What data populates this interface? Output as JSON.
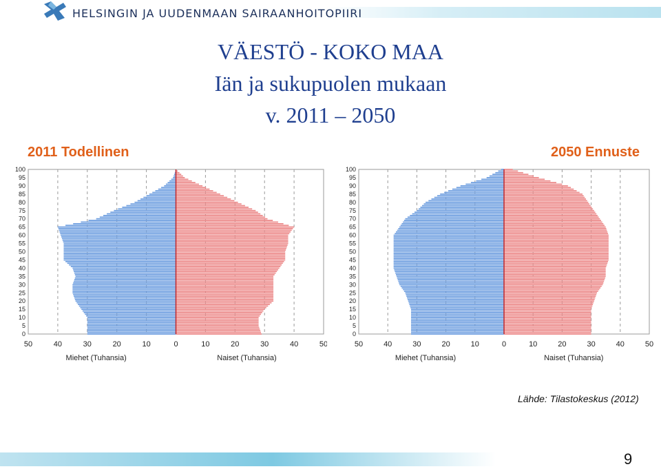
{
  "header": {
    "org_name": "HELSINGIN JA UUDENMAAN SAIRAANHOITOPIIRI",
    "logo_icon": "hus-cross-logo-icon"
  },
  "title": {
    "line1": "VÄESTÖ - KOKO MAA",
    "line2": "Iän ja sukupuolen mukaan",
    "line3": "v. 2011 – 2050"
  },
  "colors": {
    "male": "#6f9fe0",
    "female": "#ec8a8a",
    "axis_line": "#c0282d",
    "title": "#1f3f8f",
    "panel_label": "#e0601a"
  },
  "chart_data": [
    {
      "type": "bar",
      "orientation": "horizontal-population-pyramid",
      "panel_label": "2011 Todellinen",
      "age_ticks": [
        100,
        95,
        90,
        85,
        80,
        75,
        70,
        65,
        60,
        55,
        50,
        45,
        40,
        35,
        30,
        25,
        20,
        15,
        10,
        5,
        0
      ],
      "x_ticks": [
        50,
        40,
        30,
        20,
        10,
        0,
        10,
        20,
        30,
        40,
        50
      ],
      "xlabel_left": "Miehet (Tuhansia)",
      "xlabel_right": "Naiset (Tuhansia)",
      "xlim": [
        -50,
        50
      ],
      "ylim": [
        0,
        100
      ],
      "grid": true,
      "series": [
        {
          "name": "Miehet",
          "ages": [
            0,
            5,
            10,
            15,
            20,
            25,
            30,
            35,
            40,
            45,
            50,
            55,
            60,
            65,
            70,
            75,
            80,
            85,
            90,
            95,
            100
          ],
          "values": [
            30,
            30,
            30,
            32,
            34,
            35,
            35,
            34,
            35,
            38,
            38,
            38,
            39,
            40,
            27,
            21,
            14,
            9,
            4,
            1,
            0
          ]
        },
        {
          "name": "Naiset",
          "ages": [
            0,
            5,
            10,
            15,
            20,
            25,
            30,
            35,
            40,
            45,
            50,
            55,
            60,
            65,
            70,
            75,
            80,
            85,
            90,
            95,
            100
          ],
          "values": [
            29,
            28,
            28,
            30,
            33,
            33,
            33,
            33,
            35,
            37,
            37,
            38,
            38,
            40,
            31,
            27,
            21,
            15,
            9,
            3,
            0
          ]
        }
      ]
    },
    {
      "type": "bar",
      "orientation": "horizontal-population-pyramid",
      "panel_label": "2050 Ennuste",
      "age_ticks": [
        100,
        95,
        90,
        85,
        80,
        75,
        70,
        65,
        60,
        55,
        50,
        45,
        40,
        35,
        30,
        25,
        20,
        15,
        10,
        5,
        0
      ],
      "x_ticks": [
        50,
        40,
        30,
        20,
        10,
        0,
        10,
        20,
        30,
        40,
        50
      ],
      "xlabel_left": "Miehet (Tuhansia)",
      "xlabel_right": "Naiset (Tuhansia)",
      "xlim": [
        -50,
        50
      ],
      "ylim": [
        0,
        100
      ],
      "grid": true,
      "series": [
        {
          "name": "Miehet",
          "ages": [
            0,
            5,
            10,
            15,
            20,
            25,
            30,
            35,
            40,
            45,
            50,
            55,
            60,
            65,
            70,
            75,
            80,
            85,
            90,
            95,
            100
          ],
          "values": [
            32,
            32,
            32,
            32,
            33,
            34,
            36,
            37,
            38,
            38,
            38,
            38,
            38,
            36,
            34,
            30,
            27,
            22,
            15,
            6,
            1
          ]
        },
        {
          "name": "Naiset",
          "ages": [
            0,
            5,
            10,
            15,
            20,
            25,
            30,
            35,
            40,
            45,
            50,
            55,
            60,
            65,
            70,
            75,
            80,
            85,
            90,
            95,
            100
          ],
          "values": [
            30,
            30,
            30,
            30,
            31,
            32,
            34,
            35,
            35,
            36,
            36,
            36,
            36,
            35,
            33,
            31,
            29,
            27,
            22,
            12,
            3
          ]
        }
      ]
    }
  ],
  "source": "Lähde: Tilastokeskus (2012)",
  "page_number": "9"
}
